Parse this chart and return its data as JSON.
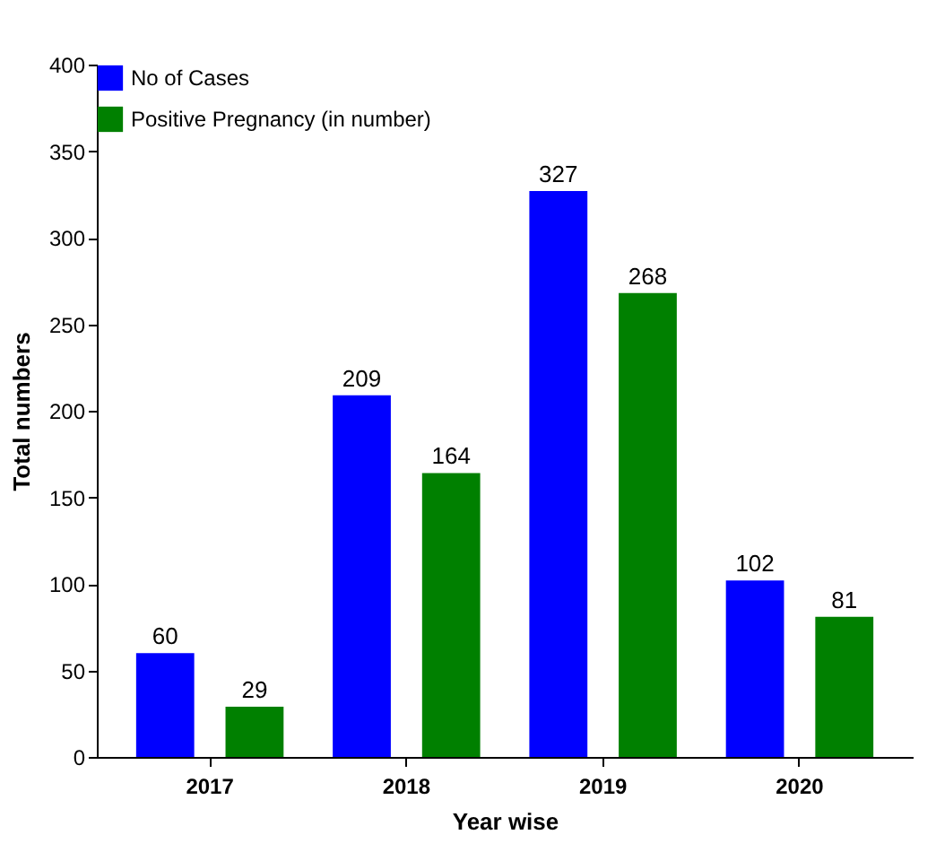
{
  "chart_data": {
    "type": "bar",
    "xlabel": "Year wise",
    "ylabel": "Total numbers",
    "categories": [
      "2017",
      "2018",
      "2019",
      "2020"
    ],
    "series": [
      {
        "name": "No of Cases",
        "color": "#0000ff",
        "values": [
          60,
          209,
          327,
          102
        ]
      },
      {
        "name": "Positive Pregnancy (in number)",
        "color": "#008000",
        "values": [
          29,
          164,
          268,
          81
        ]
      }
    ],
    "ylim": [
      0,
      400
    ],
    "yticks": [
      0,
      50,
      100,
      150,
      200,
      250,
      300,
      350,
      400
    ],
    "grid": false,
    "legend": "top left",
    "data_labels": true
  }
}
